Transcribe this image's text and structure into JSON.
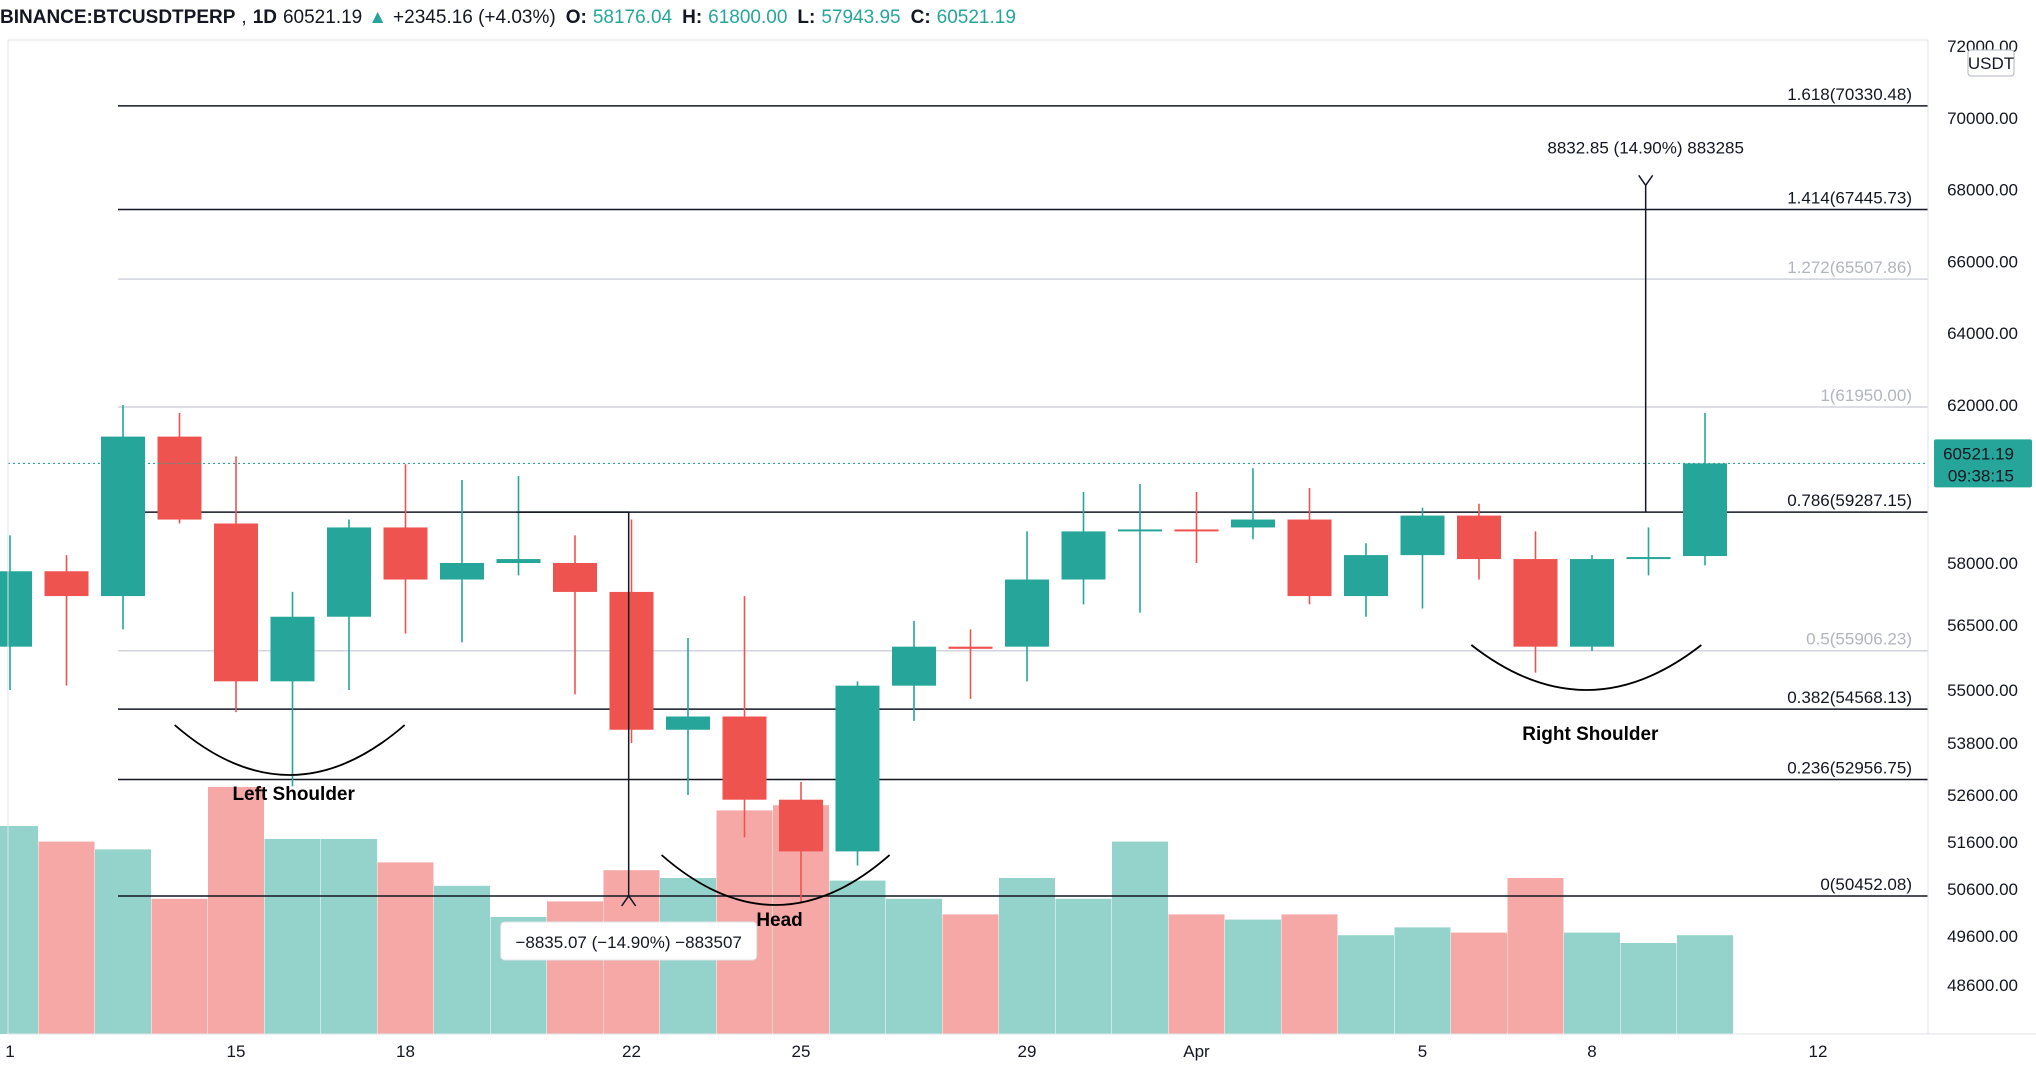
{
  "header": {
    "symbol": "BINANCE:BTCUSDTPERP",
    "interval": "1D",
    "last": "60521.19",
    "change": "+2345.16 (+4.03%)",
    "open_label": "O:",
    "open": "58176.04",
    "high_label": "H:",
    "high": "61800.00",
    "low_label": "L:",
    "low": "57943.95",
    "close_label": "C:",
    "close": "60521.19"
  },
  "price_axis": {
    "currency": "USDT",
    "last_price": "60521.19",
    "countdown": "09:38:15"
  },
  "colors": {
    "up": "#26a69a",
    "down": "#ef5350",
    "up_volume": "#94d3cc",
    "down_volume": "#f5a8a6",
    "line": "#131722",
    "faded": "#b2b5be",
    "last_price": "#26a69a"
  },
  "chart_data": {
    "type": "candlestick",
    "symbol": "BINANCE:BTCUSDTPERP",
    "interval": "1D",
    "ylim": [
      47000,
      72000
    ],
    "y_ticks": [
      {
        "value": 72000,
        "label": "72000.00"
      },
      {
        "value": 70000,
        "label": "70000.00"
      },
      {
        "value": 68000,
        "label": "68000.00"
      },
      {
        "value": 66000,
        "label": "66000.00"
      },
      {
        "value": 64000,
        "label": "64000.00"
      },
      {
        "value": 62000,
        "label": "62000.00"
      },
      {
        "value": 58000,
        "label": "58000.00"
      },
      {
        "value": 56500,
        "label": "56500.00"
      },
      {
        "value": 55000,
        "label": "55000.00"
      },
      {
        "value": 53800,
        "label": "53800.00"
      },
      {
        "value": 52600,
        "label": "52600.00"
      },
      {
        "value": 51600,
        "label": "51600.00"
      },
      {
        "value": 50600,
        "label": "50600.00"
      },
      {
        "value": 49600,
        "label": "49600.00"
      },
      {
        "value": 48600,
        "label": "48600.00"
      }
    ],
    "x_ticks": [
      {
        "index": 0,
        "label": "1"
      },
      {
        "index": 4,
        "label": "15"
      },
      {
        "index": 7,
        "label": "18"
      },
      {
        "index": 11,
        "label": "22"
      },
      {
        "index": 14,
        "label": "25"
      },
      {
        "index": 18,
        "label": "29"
      },
      {
        "index": 21,
        "label": "Apr"
      },
      {
        "index": 25,
        "label": "5"
      },
      {
        "index": 28,
        "label": "8"
      },
      {
        "index": 32,
        "label": "12"
      }
    ],
    "candles": [
      {
        "o": 56000,
        "h": 58700,
        "l": 55000,
        "c": 57800
      },
      {
        "o": 57800,
        "h": 58200,
        "l": 55100,
        "c": 57200
      },
      {
        "o": 57200,
        "h": 62000,
        "l": 56400,
        "c": 61200
      },
      {
        "o": 61200,
        "h": 61800,
        "l": 59000,
        "c": 59100
      },
      {
        "o": 59000,
        "h": 60700,
        "l": 54500,
        "c": 55200
      },
      {
        "o": 55200,
        "h": 57300,
        "l": 52800,
        "c": 56700
      },
      {
        "o": 56700,
        "h": 59100,
        "l": 55000,
        "c": 58900
      },
      {
        "o": 58900,
        "h": 60500,
        "l": 56300,
        "c": 57600
      },
      {
        "o": 57600,
        "h": 60100,
        "l": 56100,
        "c": 58000
      },
      {
        "o": 58000,
        "h": 60200,
        "l": 57700,
        "c": 58100
      },
      {
        "o": 58000,
        "h": 58700,
        "l": 54900,
        "c": 57300
      },
      {
        "o": 57300,
        "h": 59100,
        "l": 53800,
        "c": 54100
      },
      {
        "o": 54100,
        "h": 56200,
        "l": 52600,
        "c": 54400
      },
      {
        "o": 54400,
        "h": 57200,
        "l": 51700,
        "c": 52500
      },
      {
        "o": 52500,
        "h": 52900,
        "l": 50300,
        "c": 51400
      },
      {
        "o": 51400,
        "h": 55200,
        "l": 51100,
        "c": 55100
      },
      {
        "o": 55100,
        "h": 56600,
        "l": 54300,
        "c": 56000
      },
      {
        "o": 56000,
        "h": 56400,
        "l": 54800,
        "c": 55950
      },
      {
        "o": 56000,
        "h": 58800,
        "l": 55200,
        "c": 57600
      },
      {
        "o": 57600,
        "h": 59800,
        "l": 57000,
        "c": 58800
      },
      {
        "o": 58800,
        "h": 60000,
        "l": 56800,
        "c": 58850
      },
      {
        "o": 58850,
        "h": 59800,
        "l": 58000,
        "c": 58800
      },
      {
        "o": 58900,
        "h": 60400,
        "l": 58600,
        "c": 59100
      },
      {
        "o": 59100,
        "h": 59900,
        "l": 57000,
        "c": 57200
      },
      {
        "o": 57200,
        "h": 58500,
        "l": 56700,
        "c": 58200
      },
      {
        "o": 58200,
        "h": 59400,
        "l": 56900,
        "c": 59200
      },
      {
        "o": 59200,
        "h": 59500,
        "l": 57600,
        "c": 58100
      },
      {
        "o": 58100,
        "h": 58800,
        "l": 55400,
        "c": 56000
      },
      {
        "o": 56000,
        "h": 58200,
        "l": 55900,
        "c": 58100
      },
      {
        "o": 58100,
        "h": 58900,
        "l": 57700,
        "c": 58150
      },
      {
        "o": 58176.04,
        "h": 61800,
        "l": 57943.95,
        "c": 60521.19
      }
    ],
    "volume": [
      {
        "v": 0.8,
        "up": true
      },
      {
        "v": 0.74,
        "up": false
      },
      {
        "v": 0.71,
        "up": true
      },
      {
        "v": 0.52,
        "up": false
      },
      {
        "v": 0.95,
        "up": false
      },
      {
        "v": 0.75,
        "up": true
      },
      {
        "v": 0.75,
        "up": true
      },
      {
        "v": 0.66,
        "up": false
      },
      {
        "v": 0.57,
        "up": true
      },
      {
        "v": 0.45,
        "up": true
      },
      {
        "v": 0.51,
        "up": false
      },
      {
        "v": 0.63,
        "up": false
      },
      {
        "v": 0.6,
        "up": true
      },
      {
        "v": 0.86,
        "up": false
      },
      {
        "v": 0.88,
        "up": false
      },
      {
        "v": 0.59,
        "up": true
      },
      {
        "v": 0.52,
        "up": true
      },
      {
        "v": 0.46,
        "up": false
      },
      {
        "v": 0.6,
        "up": true
      },
      {
        "v": 0.52,
        "up": true
      },
      {
        "v": 0.74,
        "up": true
      },
      {
        "v": 0.46,
        "up": false
      },
      {
        "v": 0.44,
        "up": true
      },
      {
        "v": 0.46,
        "up": false
      },
      {
        "v": 0.38,
        "up": true
      },
      {
        "v": 0.41,
        "up": true
      },
      {
        "v": 0.39,
        "up": false
      },
      {
        "v": 0.6,
        "up": false
      },
      {
        "v": 0.39,
        "up": true
      },
      {
        "v": 0.35,
        "up": true
      },
      {
        "v": 0.38,
        "up": true
      }
    ],
    "fibonacci": [
      {
        "ratio": "1.618",
        "price": 70330.48,
        "label": "1.618(70330.48)",
        "faded": false
      },
      {
        "ratio": "1.414",
        "price": 67445.73,
        "label": "1.414(67445.73)",
        "faded": false
      },
      {
        "ratio": "1.272",
        "price": 65507.86,
        "label": "1.272(65507.86)",
        "faded": true
      },
      {
        "ratio": "1",
        "price": 61950.0,
        "label": "1(61950.00)",
        "faded": true
      },
      {
        "ratio": "0.786",
        "price": 59287.15,
        "label": "0.786(59287.15)",
        "faded": false
      },
      {
        "ratio": "0.5",
        "price": 55906.23,
        "label": "0.5(55906.23)",
        "faded": true
      },
      {
        "ratio": "0.382",
        "price": 54568.13,
        "label": "0.382(54568.13)",
        "faded": false
      },
      {
        "ratio": "0.236",
        "price": 52956.75,
        "label": "0.236(52956.75)",
        "faded": false
      },
      {
        "ratio": "0",
        "price": 50452.08,
        "label": "0(50452.08)",
        "faded": false
      }
    ],
    "measure_down": {
      "label": "−8835.07 (−14.90%) −883507",
      "from": 59287.15,
      "to": 50452.08,
      "index": 10.95
    },
    "measure_up": {
      "label": "8832.85 (14.90%) 883285",
      "from": 59287.15,
      "to": 68120,
      "index": 28.95
    },
    "patterns": [
      {
        "label": "Left Shoulder",
        "index": 4.95
      },
      {
        "label": "Head",
        "index": 13.55
      },
      {
        "label": "Right Shoulder",
        "index": 27.9
      }
    ]
  }
}
